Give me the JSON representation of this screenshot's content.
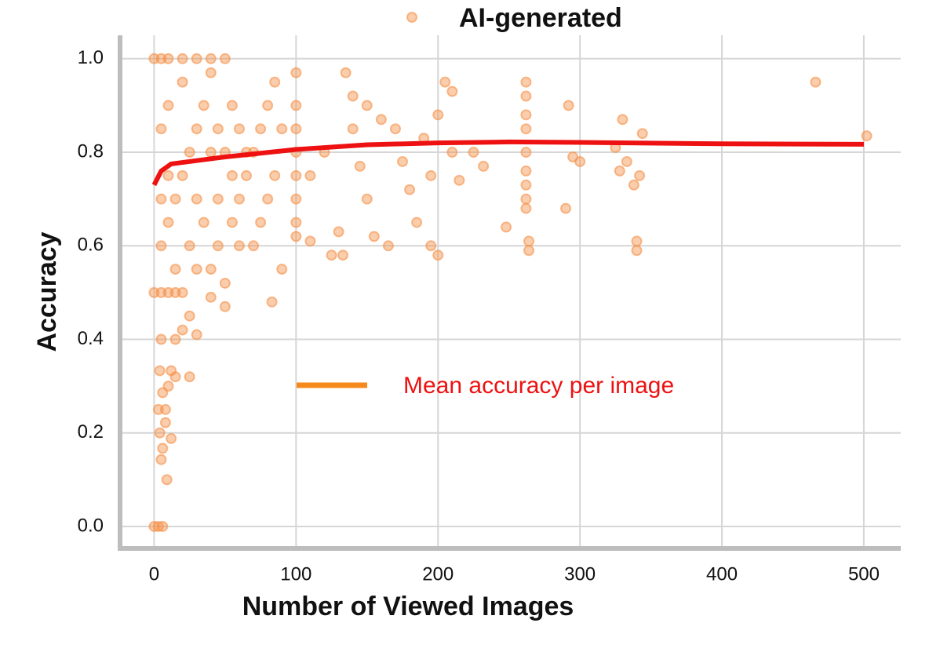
{
  "chart_data": {
    "type": "scatter",
    "xlabel": "Number of Viewed Images",
    "ylabel": "Accuracy",
    "xlim": [
      -24,
      526
    ],
    "ylim": [
      -0.047,
      1.05
    ],
    "xticks": [
      0,
      100,
      200,
      300,
      400,
      500
    ],
    "yticks": [
      {
        "value": 0,
        "label": "0.0"
      },
      0.2,
      0.4,
      0.6,
      0.8,
      {
        "value": 1,
        "label": "1.0"
      }
    ],
    "grid": true,
    "series": [
      {
        "name": "AI-generated",
        "color": "#f5914a",
        "x": [
          0,
          5,
          10,
          20,
          30,
          40,
          0,
          3,
          6,
          0,
          5,
          10,
          15,
          20,
          9,
          5,
          6,
          4,
          8,
          12,
          3,
          8,
          6,
          10,
          4,
          12,
          15,
          25,
          5,
          15,
          20,
          30,
          25,
          40,
          50,
          5,
          10,
          15,
          20,
          25,
          30,
          35,
          10,
          20,
          40,
          50,
          45,
          55,
          60,
          65,
          70,
          60,
          55,
          30,
          40,
          50,
          70,
          75,
          80,
          85,
          90,
          80,
          85,
          83,
          90,
          15,
          25,
          35,
          45,
          55,
          65,
          75,
          45,
          50,
          5,
          10,
          5,
          30,
          40,
          60,
          100,
          100,
          100,
          100,
          100,
          100,
          100,
          100,
          110,
          110,
          120,
          125,
          130,
          133,
          135,
          140,
          140,
          145,
          150,
          150,
          155,
          160,
          165,
          170,
          175,
          180,
          185,
          190,
          195,
          195,
          200,
          200,
          205,
          210,
          210,
          215,
          225,
          232,
          248,
          262,
          262,
          262,
          262,
          262,
          262,
          262,
          262,
          262,
          264,
          264,
          290,
          292,
          295,
          300,
          325,
          328,
          330,
          333,
          338,
          340,
          340,
          342,
          344,
          466,
          502
        ],
        "values": [
          1,
          1,
          1,
          1,
          1,
          1,
          0,
          0,
          0,
          0.5,
          0.5,
          0.5,
          0.5,
          0.5,
          0.1,
          0.143,
          0.167,
          0.2,
          0.222,
          0.188,
          0.25,
          0.25,
          0.286,
          0.3,
          0.333,
          0.333,
          0.32,
          0.32,
          0.4,
          0.4,
          0.42,
          0.41,
          0.45,
          0.49,
          0.47,
          0.6,
          0.65,
          0.7,
          0.75,
          0.8,
          0.85,
          0.9,
          0.9,
          0.95,
          0.97,
          1,
          0.6,
          0.65,
          0.7,
          0.75,
          0.8,
          0.85,
          0.9,
          0.55,
          0.55,
          0.52,
          0.6,
          0.65,
          0.7,
          0.75,
          0.85,
          0.9,
          0.95,
          0.48,
          0.55,
          0.55,
          0.6,
          0.65,
          0.7,
          0.75,
          0.8,
          0.85,
          0.85,
          0.8,
          0.85,
          0.75,
          0.7,
          0.7,
          0.8,
          0.6,
          0.97,
          0.9,
          0.85,
          0.8,
          0.75,
          0.7,
          0.65,
          0.62,
          0.61,
          0.75,
          0.8,
          0.58,
          0.63,
          0.58,
          0.97,
          0.92,
          0.85,
          0.77,
          0.9,
          0.7,
          0.62,
          0.87,
          0.6,
          0.85,
          0.78,
          0.72,
          0.65,
          0.83,
          0.75,
          0.6,
          0.58,
          0.88,
          0.95,
          0.93,
          0.8,
          0.74,
          0.8,
          0.77,
          0.64,
          0.95,
          0.92,
          0.88,
          0.85,
          0.8,
          0.76,
          0.73,
          0.7,
          0.68,
          0.61,
          0.59,
          0.68,
          0.9,
          0.79,
          0.78,
          0.81,
          0.76,
          0.87,
          0.78,
          0.73,
          0.61,
          0.59,
          0.75,
          0.84,
          0.95,
          0.835
        ]
      },
      {
        "name": "Mean accuracy per image",
        "type": "line",
        "color": "#ee1111",
        "legend_color": "#f5891a",
        "x": [
          0,
          5,
          12,
          50,
          100,
          150,
          200,
          250,
          300,
          400,
          500
        ],
        "values": [
          0.73,
          0.76,
          0.775,
          0.79,
          0.806,
          0.816,
          0.82,
          0.822,
          0.821,
          0.818,
          0.817
        ]
      }
    ]
  }
}
